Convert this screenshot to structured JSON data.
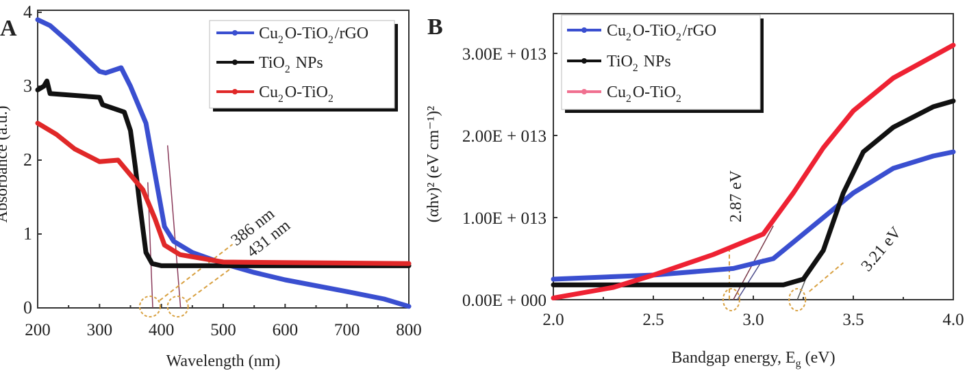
{
  "chart_data": [
    {
      "panel": "A",
      "type": "line",
      "xlabel": "Wavelength (nm)",
      "ylabel": "Absorbance (a.u.)",
      "xlim": [
        200,
        800
      ],
      "ylim": [
        0,
        4
      ],
      "xticks": [
        200,
        300,
        400,
        500,
        600,
        700,
        800
      ],
      "yticks": [
        0,
        1,
        2,
        3,
        4
      ],
      "legend": "top-right",
      "grid": false,
      "series": [
        {
          "name": "Cu2O-TiO2/rGO",
          "color": "#3a4fd0",
          "x": [
            200,
            220,
            250,
            300,
            310,
            335,
            350,
            375,
            390,
            405,
            420,
            450,
            500,
            550,
            600,
            700,
            760,
            800
          ],
          "y": [
            3.9,
            3.82,
            3.6,
            3.2,
            3.18,
            3.25,
            3.0,
            2.5,
            1.8,
            1.1,
            0.9,
            0.75,
            0.6,
            0.48,
            0.38,
            0.22,
            0.12,
            0.02
          ]
        },
        {
          "name": "TiO2 NPs",
          "color": "#111111",
          "x": [
            200,
            210,
            215,
            220,
            300,
            305,
            340,
            350,
            358,
            365,
            375,
            385,
            400,
            800
          ],
          "y": [
            2.95,
            3.0,
            3.07,
            2.9,
            2.85,
            2.75,
            2.65,
            2.4,
            1.9,
            1.4,
            0.75,
            0.6,
            0.57,
            0.57
          ]
        },
        {
          "name": "Cu2O-TiO2",
          "color": "#e02828",
          "x": [
            200,
            230,
            260,
            300,
            330,
            350,
            370,
            390,
            405,
            430,
            500,
            800
          ],
          "y": [
            2.5,
            2.35,
            2.15,
            1.98,
            2.0,
            1.8,
            1.6,
            1.2,
            0.85,
            0.72,
            0.62,
            0.6
          ]
        }
      ],
      "annotations": [
        "386 nm",
        "431 nm"
      ],
      "panel_label": "A"
    },
    {
      "panel": "B",
      "type": "line",
      "xlabel": "Bandgap energy, Eg (eV)",
      "ylabel": "(αhν)² (eV cm⁻¹)²",
      "xlim": [
        2.0,
        4.0
      ],
      "ylim": [
        0,
        34000000000000.0
      ],
      "xticks": [
        "2.0",
        "2.5",
        "3.0",
        "3.5",
        "4.0"
      ],
      "yticks": [
        "0.00E + 000",
        "1.00E + 013",
        "2.00E + 013",
        "3.00E + 013"
      ],
      "legend": "top-left",
      "grid": false,
      "series": [
        {
          "name": "Cu2O-TiO2/rGO",
          "color": "#3a4fd0",
          "x": [
            2.0,
            2.5,
            2.9,
            3.1,
            3.3,
            3.5,
            3.7,
            3.9,
            4.0
          ],
          "y": [
            2500000000000.0,
            3000000000000.0,
            3800000000000.0,
            5000000000000.0,
            9000000000000.0,
            13000000000000.0,
            16000000000000.0,
            17500000000000.0,
            18000000000000.0
          ]
        },
        {
          "name": "TiO2 NPs",
          "color": "#111111",
          "x": [
            2.0,
            3.15,
            3.25,
            3.35,
            3.45,
            3.55,
            3.7,
            3.9,
            4.0
          ],
          "y": [
            1800000000000.0,
            1800000000000.0,
            2500000000000.0,
            6000000000000.0,
            13000000000000.0,
            18000000000000.0,
            21000000000000.0,
            23500000000000.0,
            24200000000000.0
          ]
        },
        {
          "name": "Cu2O-TiO2",
          "color": "#ee2233",
          "x": [
            2.0,
            2.3,
            2.5,
            2.8,
            3.05,
            3.2,
            3.35,
            3.5,
            3.7,
            4.0
          ],
          "y": [
            200000000000.0,
            1500000000000.0,
            3000000000000.0,
            5500000000000.0,
            8000000000000.0,
            13000000000000.0,
            18500000000000.0,
            23000000000000.0,
            27000000000000.0,
            31000000000000.0
          ]
        }
      ],
      "annotations": [
        "2.87 eV",
        "3.21 eV"
      ],
      "panel_label": "B"
    }
  ]
}
